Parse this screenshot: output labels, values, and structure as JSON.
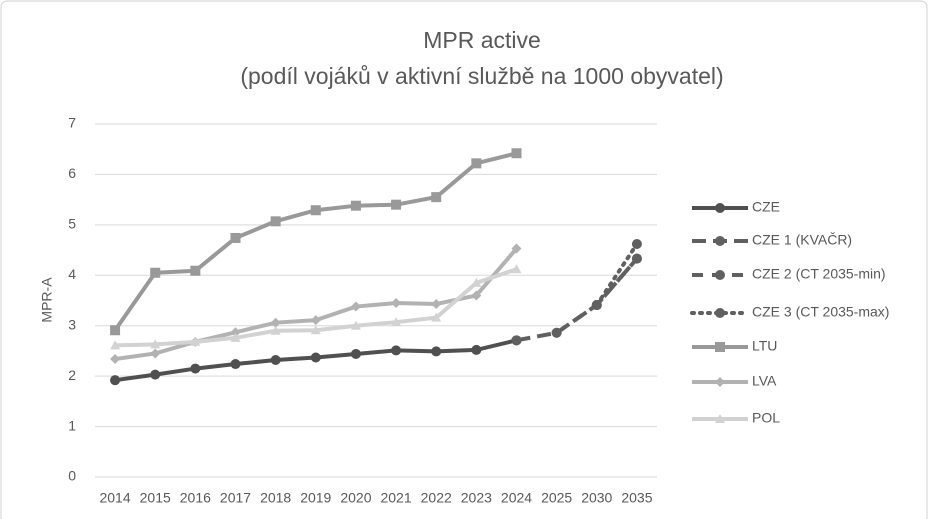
{
  "chart_data": {
    "type": "line",
    "title": "MPR active",
    "subtitle": "(podíl vojáků v aktivní službě na 1000 obyvatel)",
    "y_label": "MPR-A",
    "categories": [
      "2014",
      "2015",
      "2016",
      "2017",
      "2018",
      "2019",
      "2020",
      "2021",
      "2022",
      "2023",
      "2024",
      "2025",
      "2030",
      "2035"
    ],
    "ylim": [
      0,
      7
    ],
    "yticks": [
      0,
      1,
      2,
      3,
      4,
      5,
      6,
      7
    ],
    "grid": true,
    "legend": "right",
    "series": [
      {
        "name": "CZE",
        "color": "#505050",
        "dash": "solid",
        "marker": "circle",
        "values": [
          1.92,
          2.03,
          2.15,
          2.24,
          2.32,
          2.37,
          2.44,
          2.51,
          2.49,
          2.52,
          2.71,
          null,
          null,
          null
        ]
      },
      {
        "name": "CZE 1 (KVAČR)",
        "color": "#606060",
        "dash": "dash",
        "marker": "circle",
        "values": [
          null,
          null,
          null,
          null,
          null,
          null,
          null,
          null,
          null,
          null,
          2.71,
          2.86,
          3.41,
          4.33
        ]
      },
      {
        "name": "CZE 2 (CT 2035-min)",
        "color": "#606060",
        "dash": "longdash",
        "marker": "circle",
        "values": [
          null,
          null,
          null,
          null,
          null,
          null,
          null,
          null,
          null,
          null,
          null,
          2.86,
          3.41,
          4.33
        ]
      },
      {
        "name": "CZE 3 (CT 2035-max)",
        "color": "#606060",
        "dash": "dot",
        "marker": "circle",
        "values": [
          null,
          null,
          null,
          null,
          null,
          null,
          null,
          null,
          null,
          null,
          null,
          null,
          3.41,
          4.62
        ]
      },
      {
        "name": "LTU",
        "color": "#999999",
        "dash": "solid",
        "marker": "square",
        "values": [
          2.91,
          4.05,
          4.09,
          4.74,
          5.07,
          5.29,
          5.38,
          5.4,
          5.55,
          6.22,
          6.42,
          null,
          null,
          null
        ]
      },
      {
        "name": "LVA",
        "color": "#b2b2b2",
        "dash": "solid",
        "marker": "diamond",
        "values": [
          2.34,
          2.45,
          2.68,
          2.87,
          3.06,
          3.11,
          3.38,
          3.45,
          3.43,
          3.6,
          4.53,
          null,
          null,
          null
        ]
      },
      {
        "name": "POL",
        "color": "#d2d2d2",
        "dash": "solid",
        "marker": "triangle",
        "values": [
          2.61,
          2.63,
          2.68,
          2.76,
          2.9,
          2.91,
          3.0,
          3.07,
          3.16,
          3.85,
          4.12,
          null,
          null,
          null
        ]
      }
    ]
  }
}
